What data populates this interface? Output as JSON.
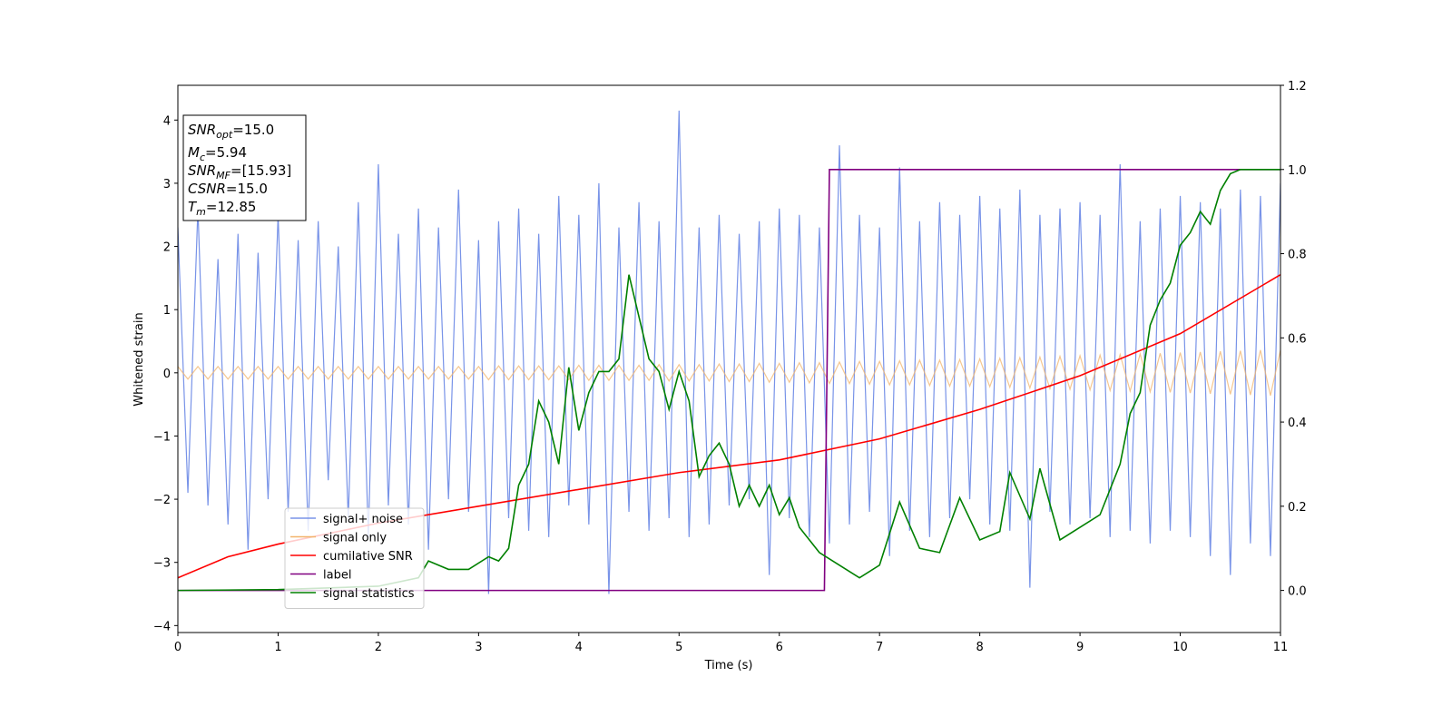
{
  "chart_data": {
    "type": "line",
    "xlabel": "Time (s)",
    "ylabel": "Whitened strain",
    "xlim": [
      0,
      11
    ],
    "ylim": [
      -4.11,
      4.55
    ],
    "y2lim": [
      -0.1,
      1.2
    ],
    "xticks": [
      0,
      1,
      2,
      3,
      4,
      5,
      6,
      7,
      8,
      9,
      10,
      11
    ],
    "yticks": [
      {
        "value": -4,
        "label": "−4"
      },
      {
        "value": -3,
        "label": "−3"
      },
      {
        "value": -2,
        "label": "−2"
      },
      {
        "value": -1,
        "label": "−1"
      },
      0,
      1,
      2,
      3,
      4
    ],
    "y2ticks": [
      {
        "value": 0,
        "label": "0.0"
      },
      {
        "value": 0.2,
        "label": "0.2"
      },
      {
        "value": 0.4,
        "label": "0.4"
      },
      {
        "value": 0.6,
        "label": "0.6"
      },
      {
        "value": 0.8,
        "label": "0.8"
      },
      {
        "value": 1.0,
        "label": "1.0"
      },
      {
        "value": 1.2,
        "label": "1.2"
      }
    ],
    "legend": "lower left",
    "x": [
      0,
      0.1,
      0.2,
      0.3,
      0.4,
      0.5,
      0.6,
      0.7,
      0.8,
      0.9,
      1,
      1.1,
      1.2,
      1.3,
      1.4,
      1.5,
      1.6,
      1.7,
      1.8,
      1.9,
      2,
      2.1,
      2.2,
      2.3,
      2.4,
      2.5,
      2.6,
      2.7,
      2.8,
      2.9,
      3,
      3.1,
      3.2,
      3.3,
      3.4,
      3.5,
      3.6,
      3.7,
      3.8,
      3.9,
      4,
      4.1,
      4.2,
      4.3,
      4.4,
      4.5,
      4.6,
      4.7,
      4.8,
      4.9,
      5,
      5.1,
      5.2,
      5.3,
      5.4,
      5.5,
      5.6,
      5.7,
      5.8,
      5.9,
      6,
      6.1,
      6.2,
      6.3,
      6.4,
      6.5,
      6.6,
      6.7,
      6.8,
      6.9,
      7,
      7.1,
      7.2,
      7.3,
      7.4,
      7.5,
      7.6,
      7.7,
      7.8,
      7.9,
      8,
      8.1,
      8.2,
      8.3,
      8.4,
      8.5,
      8.6,
      8.7,
      8.8,
      8.9,
      9,
      9.1,
      9.2,
      9.3,
      9.4,
      9.5,
      9.6,
      9.7,
      9.8,
      9.9,
      10,
      10.1,
      10.2,
      10.3,
      10.4,
      10.5,
      10.6,
      10.7,
      10.8,
      10.9,
      11
    ],
    "series": [
      {
        "name": "signal+ noise",
        "color": "#7893e8",
        "values": [
          2.3,
          -1.9,
          2.6,
          -2.1,
          1.8,
          -2.4,
          2.2,
          -2.8,
          1.9,
          -2.0,
          2.5,
          -2.2,
          2.1,
          -2.5,
          2.4,
          -1.7,
          2.0,
          -2.3,
          2.7,
          -2.6,
          3.3,
          -2.1,
          2.2,
          -2.4,
          2.6,
          -2.8,
          2.3,
          -2.0,
          2.9,
          -2.2,
          2.1,
          -3.5,
          2.4,
          -2.3,
          2.6,
          -2.5,
          2.2,
          -2.6,
          2.8,
          -2.1,
          2.5,
          -2.4,
          3.0,
          -3.5,
          2.3,
          -2.2,
          2.7,
          -2.5,
          2.4,
          -2.3,
          4.15,
          -2.6,
          2.3,
          -2.4,
          2.5,
          -2.1,
          2.2,
          -2.0,
          2.4,
          -3.2,
          2.6,
          -2.3,
          2.5,
          -2.6,
          2.3,
          -2.7,
          3.6,
          -2.4,
          2.5,
          -2.2,
          2.3,
          -2.9,
          3.25,
          -2.5,
          2.4,
          -2.6,
          2.7,
          -2.3,
          2.5,
          -2.0,
          2.8,
          -2.4,
          2.6,
          -2.5,
          2.9,
          -3.4,
          2.5,
          -2.2,
          2.6,
          -2.4,
          2.7,
          -2.3,
          2.5,
          -2.6,
          3.3,
          -2.5,
          2.4,
          -2.7,
          2.6,
          -2.5,
          2.8,
          -2.6,
          2.7,
          -2.9,
          2.6,
          -3.2,
          2.9,
          -2.7,
          2.8,
          -2.9,
          3.0
        ]
      },
      {
        "name": "signal only",
        "color": "#f2b46c",
        "values": [
          0.1,
          -0.1,
          0.1,
          -0.1,
          0.1,
          -0.1,
          0.1,
          -0.1,
          0.1,
          -0.1,
          0.1,
          -0.1,
          0.1,
          -0.1,
          0.1,
          -0.1,
          0.1,
          -0.1,
          0.1,
          -0.1,
          0.1,
          -0.1,
          0.1,
          -0.1,
          0.1,
          -0.1,
          0.1,
          -0.1,
          0.1,
          -0.1,
          0.1,
          -0.11,
          0.11,
          -0.11,
          0.11,
          -0.11,
          0.11,
          -0.11,
          0.11,
          -0.11,
          0.12,
          -0.12,
          0.12,
          -0.12,
          0.12,
          -0.12,
          0.12,
          -0.12,
          0.13,
          -0.13,
          0.13,
          -0.13,
          0.13,
          -0.13,
          0.14,
          -0.14,
          0.14,
          -0.14,
          0.15,
          -0.15,
          0.15,
          -0.15,
          0.16,
          -0.16,
          0.16,
          -0.17,
          0.17,
          -0.17,
          0.18,
          -0.18,
          0.18,
          -0.19,
          0.19,
          -0.19,
          0.2,
          -0.2,
          0.2,
          -0.21,
          0.21,
          -0.21,
          0.22,
          -0.22,
          0.23,
          -0.23,
          0.24,
          -0.24,
          0.25,
          -0.25,
          0.26,
          -0.26,
          0.27,
          -0.27,
          0.28,
          -0.28,
          0.29,
          -0.29,
          0.3,
          -0.3,
          0.31,
          -0.31,
          0.32,
          -0.32,
          0.33,
          -0.33,
          0.34,
          -0.34,
          0.35,
          -0.35,
          0.36,
          -0.36,
          0.36
        ]
      },
      {
        "name": "cumilative SNR",
        "color": "#ff0000",
        "axis": "y2",
        "x": [
          0,
          0.5,
          1,
          2,
          3,
          4,
          5,
          6,
          7,
          8,
          9,
          10,
          11
        ],
        "values": [
          0.03,
          0.08,
          0.11,
          0.16,
          0.2,
          0.24,
          0.28,
          0.31,
          0.36,
          0.43,
          0.51,
          0.61,
          0.75
        ]
      },
      {
        "name": "label",
        "color": "#800080",
        "axis": "y2",
        "x": [
          0,
          6.45,
          6.5,
          11
        ],
        "values": [
          0,
          0,
          1,
          1
        ]
      },
      {
        "name": "signal statistics",
        "color": "#008000",
        "axis": "y2",
        "x": [
          0,
          1,
          2,
          2.4,
          2.5,
          2.7,
          2.9,
          3.1,
          3.2,
          3.3,
          3.4,
          3.5,
          3.6,
          3.7,
          3.8,
          3.9,
          4.0,
          4.1,
          4.2,
          4.3,
          4.4,
          4.5,
          4.6,
          4.7,
          4.8,
          4.9,
          5.0,
          5.1,
          5.2,
          5.3,
          5.4,
          5.5,
          5.6,
          5.7,
          5.8,
          5.9,
          6.0,
          6.1,
          6.2,
          6.4,
          6.6,
          6.8,
          7.0,
          7.2,
          7.4,
          7.6,
          7.8,
          8.0,
          8.2,
          8.3,
          8.5,
          8.6,
          8.8,
          9.0,
          9.2,
          9.4,
          9.5,
          9.6,
          9.7,
          9.8,
          9.9,
          10.0,
          10.1,
          10.2,
          10.3,
          10.4,
          10.5,
          10.6,
          11
        ],
        "values": [
          0,
          0.002,
          0.01,
          0.03,
          0.07,
          0.05,
          0.05,
          0.08,
          0.07,
          0.1,
          0.25,
          0.3,
          0.45,
          0.4,
          0.3,
          0.53,
          0.38,
          0.47,
          0.52,
          0.52,
          0.55,
          0.75,
          0.65,
          0.55,
          0.52,
          0.43,
          0.52,
          0.45,
          0.27,
          0.32,
          0.35,
          0.3,
          0.2,
          0.25,
          0.2,
          0.25,
          0.18,
          0.22,
          0.15,
          0.09,
          0.06,
          0.03,
          0.06,
          0.21,
          0.1,
          0.09,
          0.22,
          0.12,
          0.14,
          0.28,
          0.17,
          0.29,
          0.12,
          0.15,
          0.18,
          0.3,
          0.42,
          0.47,
          0.63,
          0.69,
          0.73,
          0.82,
          0.85,
          0.9,
          0.87,
          0.95,
          0.99,
          1.0,
          1.0
        ]
      }
    ],
    "annotation": [
      {
        "symbol": "SNR",
        "sub": "opt",
        "text": "=15.0"
      },
      {
        "symbol": "M",
        "sub": "c",
        "text": "=5.94"
      },
      {
        "symbol": "SNR",
        "sub": "MF",
        "text": "=[15.93]"
      },
      {
        "symbol": "CSNR",
        "text": "=15.0"
      },
      {
        "symbol": "T",
        "sub": "m",
        "text": "=12.85"
      }
    ]
  }
}
